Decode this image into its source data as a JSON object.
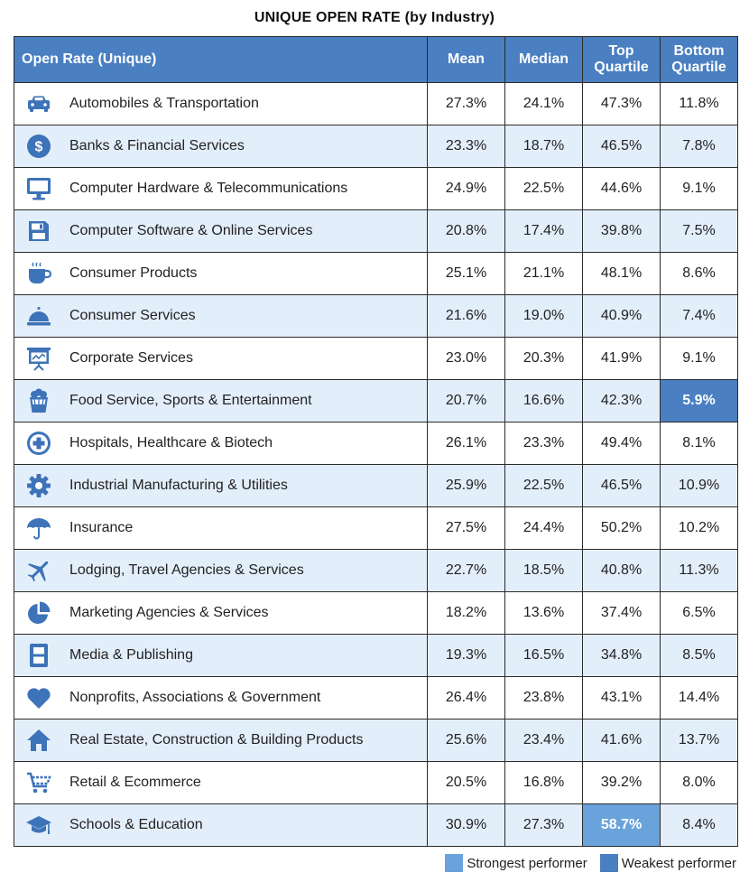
{
  "title": "UNIQUE OPEN RATE (by Industry)",
  "colors": {
    "header": "#4a7fc1",
    "row_alt": "#e3eefb",
    "icon": "#3d73b8",
    "strongest": "#6aa3dc",
    "weakest": "#4a7fc1"
  },
  "headers": {
    "name": "Open Rate (Unique)",
    "mean": "Mean",
    "median": "Median",
    "top_quartile": "Top Quartile",
    "bottom_quartile": "Bottom Quartile"
  },
  "legend": {
    "strongest": "Strongest performer",
    "weakest": "Weakest performer"
  },
  "chart_data": {
    "type": "table",
    "title": "UNIQUE OPEN RATE (by Industry)",
    "columns": [
      "Open Rate (Unique)",
      "Mean",
      "Median",
      "Top Quartile",
      "Bottom Quartile"
    ],
    "rows": [
      {
        "industry": "Automobiles & Transportation",
        "icon": "car-icon",
        "mean": "27.3%",
        "median": "24.1%",
        "top": "47.3%",
        "bottom": "11.8%"
      },
      {
        "industry": "Banks & Financial Services",
        "icon": "dollar-coin-icon",
        "mean": "23.3%",
        "median": "18.7%",
        "top": "46.5%",
        "bottom": "7.8%"
      },
      {
        "industry": "Computer Hardware & Telecommunications",
        "icon": "monitor-icon",
        "mean": "24.9%",
        "median": "22.5%",
        "top": "44.6%",
        "bottom": "9.1%"
      },
      {
        "industry": "Computer Software & Online Services",
        "icon": "floppy-disk-icon",
        "mean": "20.8%",
        "median": "17.4%",
        "top": "39.8%",
        "bottom": "7.5%"
      },
      {
        "industry": "Consumer Products",
        "icon": "coffee-cup-icon",
        "mean": "25.1%",
        "median": "21.1%",
        "top": "48.1%",
        "bottom": "8.6%"
      },
      {
        "industry": "Consumer Services",
        "icon": "service-bell-icon",
        "mean": "21.6%",
        "median": "19.0%",
        "top": "40.9%",
        "bottom": "7.4%"
      },
      {
        "industry": "Corporate Services",
        "icon": "presentation-board-icon",
        "mean": "23.0%",
        "median": "20.3%",
        "top": "41.9%",
        "bottom": "9.1%"
      },
      {
        "industry": "Food Service, Sports & Entertainment",
        "icon": "popcorn-icon",
        "mean": "20.7%",
        "median": "16.6%",
        "top": "42.3%",
        "bottom": "5.9%",
        "highlight_bottom": "weakest"
      },
      {
        "industry": "Hospitals, Healthcare & Biotech",
        "icon": "medical-cross-icon",
        "mean": "26.1%",
        "median": "23.3%",
        "top": "49.4%",
        "bottom": "8.1%"
      },
      {
        "industry": "Industrial Manufacturing & Utilities",
        "icon": "gear-icon",
        "mean": "25.9%",
        "median": "22.5%",
        "top": "46.5%",
        "bottom": "10.9%"
      },
      {
        "industry": "Insurance",
        "icon": "umbrella-icon",
        "mean": "27.5%",
        "median": "24.4%",
        "top": "50.2%",
        "bottom": "10.2%"
      },
      {
        "industry": "Lodging, Travel Agencies & Services",
        "icon": "airplane-icon",
        "mean": "22.7%",
        "median": "18.5%",
        "top": "40.8%",
        "bottom": "11.3%"
      },
      {
        "industry": "Marketing Agencies & Services",
        "icon": "pie-chart-icon",
        "mean": "18.2%",
        "median": "13.6%",
        "top": "37.4%",
        "bottom": "6.5%"
      },
      {
        "industry": "Media & Publishing",
        "icon": "film-strip-icon",
        "mean": "19.3%",
        "median": "16.5%",
        "top": "34.8%",
        "bottom": "8.5%"
      },
      {
        "industry": "Nonprofits, Associations & Government",
        "icon": "heart-icon",
        "mean": "26.4%",
        "median": "23.8%",
        "top": "43.1%",
        "bottom": "14.4%"
      },
      {
        "industry": "Real Estate, Construction & Building Products",
        "icon": "house-icon",
        "mean": "25.6%",
        "median": "23.4%",
        "top": "41.6%",
        "bottom": "13.7%"
      },
      {
        "industry": "Retail & Ecommerce",
        "icon": "shopping-cart-icon",
        "mean": "20.5%",
        "median": "16.8%",
        "top": "39.2%",
        "bottom": "8.0%"
      },
      {
        "industry": "Schools & Education",
        "icon": "graduation-cap-icon",
        "mean": "30.9%",
        "median": "27.3%",
        "top": "58.7%",
        "bottom": "8.4%",
        "highlight_top": "strongest"
      }
    ]
  }
}
